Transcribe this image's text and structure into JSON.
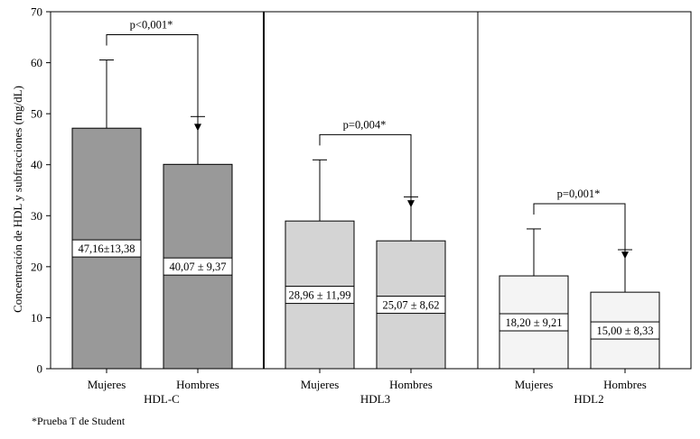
{
  "chart_data": {
    "type": "bar",
    "ylabel": "Concentración de HDL y subfracciones (mg/dL)",
    "ylim": [
      0,
      70
    ],
    "yticks": [
      0,
      10,
      20,
      30,
      40,
      50,
      60,
      70
    ],
    "groups": [
      {
        "name": "HDL-C",
        "color": "#999999",
        "pvalue": "p<0,001*",
        "bars": [
          {
            "category": "Mujeres",
            "value": 47.16,
            "sd": 13.38,
            "label": "47,16±13,38"
          },
          {
            "category": "Hombres",
            "value": 40.07,
            "sd": 9.37,
            "label": "40,07 ± 9,37"
          }
        ]
      },
      {
        "name": "HDL3",
        "color": "#d4d4d4",
        "pvalue": "p=0,004*",
        "bars": [
          {
            "category": "Mujeres",
            "value": 28.96,
            "sd": 11.99,
            "label": "28,96 ± 11,99"
          },
          {
            "category": "Hombres",
            "value": 25.07,
            "sd": 8.62,
            "label": "25,07 ± 8,62"
          }
        ]
      },
      {
        "name": "HDL2",
        "color": "#f4f4f4",
        "pvalue": "p=0,001*",
        "bars": [
          {
            "category": "Mujeres",
            "value": 18.2,
            "sd": 9.21,
            "label": "18,20 ± 9,21"
          },
          {
            "category": "Hombres",
            "value": 15.0,
            "sd": 8.33,
            "label": "15,00 ± 8,33"
          }
        ]
      }
    ],
    "footnote": "*Prueba T de Student"
  }
}
